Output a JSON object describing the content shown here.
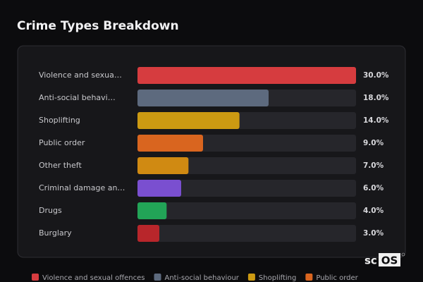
{
  "chart_data": {
    "type": "bar",
    "orientation": "horizontal",
    "title": "Crime Types Breakdown",
    "categories": [
      "Violence and sexua…",
      "Anti-social behavi…",
      "Shoplifting",
      "Public order",
      "Other theft",
      "Criminal damage an…",
      "Drugs",
      "Burglary"
    ],
    "values": [
      30,
      18,
      14,
      9,
      7,
      6,
      4,
      3
    ],
    "value_labels": [
      "30.0%",
      "18.0%",
      "14.0%",
      "9.0%",
      "7.0%",
      "6.0%",
      "4.0%",
      "3.0%"
    ],
    "colors": [
      "#d63c3f",
      "#5d6a7e",
      "#cc9a12",
      "#d9651f",
      "#d08a12",
      "#7a4fd0",
      "#22a457",
      "#b8262b"
    ],
    "legend": [
      "Violence and sexual offences",
      "Anti-social behaviour",
      "Shoplifting",
      "Public order"
    ]
  },
  "logo": {
    "prefix": "sc",
    "highlight": "OS"
  }
}
